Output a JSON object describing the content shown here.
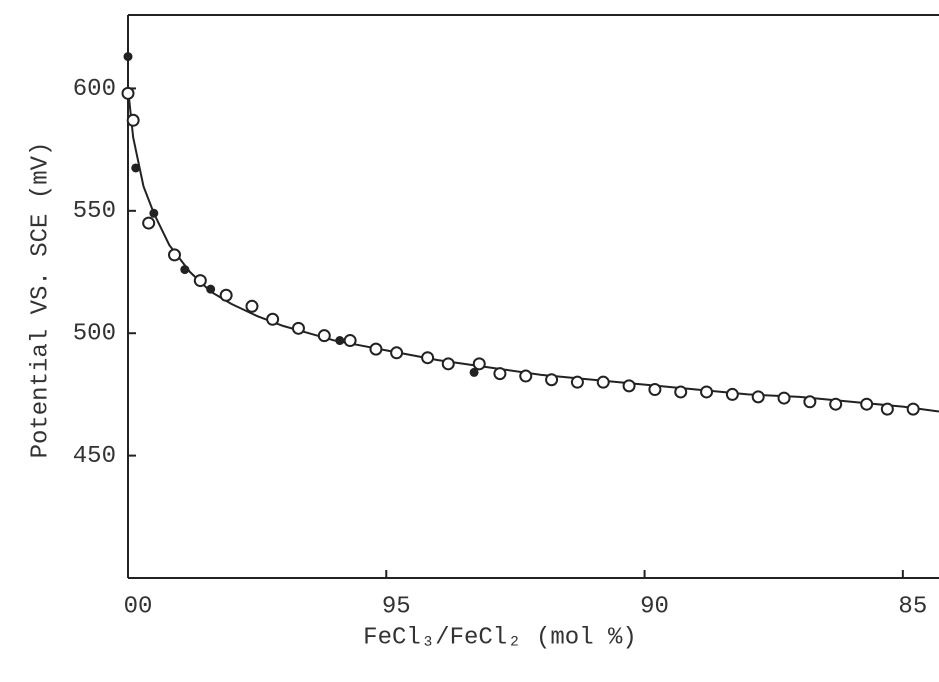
{
  "chart_data": {
    "type": "scatter",
    "x_label": "FeCl₃/FeCl₂ (mol %)",
    "y_label": "Potential VS. SCE (mV)",
    "xlim": [
      100,
      84.3
    ],
    "ylim": [
      400,
      630
    ],
    "xticks": [
      {
        "value": 100,
        "label": "00"
      },
      95,
      90,
      85
    ],
    "yticks": [
      450,
      500,
      550,
      600
    ],
    "series": [
      {
        "type": "line",
        "color": "#222",
        "x": [
          100,
          99.9,
          99.7,
          99.5,
          99.2,
          98.8,
          98.4,
          98,
          97.5,
          97,
          96.5,
          96,
          95,
          94,
          93,
          92,
          91,
          90,
          89,
          88,
          87,
          86,
          85,
          84.3
        ],
        "values": [
          600,
          580,
          560,
          549,
          536,
          525,
          517,
          512,
          507,
          503,
          500,
          497,
          493,
          489,
          486,
          483,
          481,
          479,
          477,
          475,
          474,
          472,
          470,
          468
        ]
      },
      {
        "type": "scatter",
        "marker": "open",
        "color": "#222",
        "x": [
          100,
          99.9,
          99.6,
          99.1,
          98.6,
          98.1,
          97.6,
          97.2,
          96.7,
          96.2,
          95.7,
          95.2,
          94.8,
          94.2,
          93.8,
          93.2,
          92.8,
          92.3,
          91.8,
          91.3,
          90.8,
          90.3,
          89.8,
          89.3,
          88.8,
          88.3,
          87.8,
          87.3,
          86.8,
          86.3,
          85.7,
          85.3,
          84.8
        ],
        "values": [
          598,
          587,
          545,
          532,
          521.5,
          515.5,
          511,
          505.7,
          502,
          499,
          497,
          493.5,
          492,
          490,
          487.5,
          487.5,
          483.5,
          482.5,
          481,
          480,
          480,
          478.5,
          477,
          476,
          476,
          475,
          474,
          473.5,
          472,
          471,
          471,
          469,
          469
        ]
      },
      {
        "type": "scatter",
        "marker": "filled",
        "color": "#222",
        "x": [
          100,
          99.85,
          99.5,
          98.9,
          98.4,
          95.9,
          93.3
        ],
        "values": [
          613,
          567.5,
          549,
          526,
          518,
          497,
          484
        ]
      }
    ]
  }
}
